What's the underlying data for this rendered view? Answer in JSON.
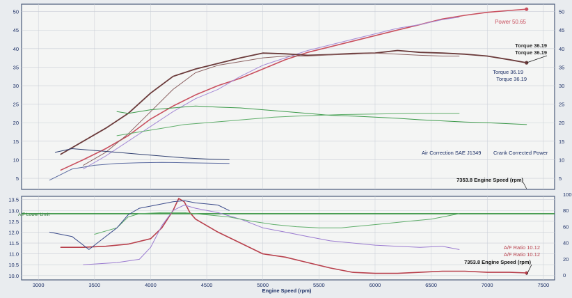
{
  "colors": {
    "background": "#e9ecef",
    "panel": "#f4f5f4",
    "frame": "#4a5a7a",
    "grid": "#c9ced6",
    "tick_text": "#1c2f66",
    "power": "#c9505f",
    "torque": "#6b3b3b",
    "torque_alt": "#8c6fd0",
    "green": "#3c9a4a",
    "blue": "#30406e",
    "af_limit": "#2f8f3a",
    "af_red": "#b8404c",
    "af_purple": "#9a7ad0"
  },
  "chart_data": [
    {
      "type": "line",
      "panel": "top",
      "xlim": [
        2850,
        7600
      ],
      "ylim": [
        2,
        52
      ],
      "yticks_left": [
        5,
        10,
        15,
        20,
        25,
        30,
        35,
        40,
        45,
        50
      ],
      "yticks_right": [
        5,
        10,
        15,
        20,
        25,
        30,
        35,
        40,
        45,
        50
      ],
      "grid": true,
      "series": [
        {
          "key": "power_a",
          "color": "#c9505f",
          "width": 1.6,
          "x": [
            3200,
            3400,
            3600,
            3800,
            4000,
            4200,
            4400,
            4600,
            4800,
            5000,
            5200,
            5400,
            5600,
            5800,
            6000,
            6200,
            6400,
            6600,
            6800,
            7000,
            7200,
            7350
          ],
          "y": [
            7.2,
            10,
            13,
            16.5,
            21,
            24.5,
            27.5,
            30,
            32,
            34.5,
            37,
            39,
            40.5,
            42,
            43.5,
            45,
            46.5,
            48,
            49,
            49.8,
            50.3,
            50.65
          ]
        },
        {
          "key": "power_b",
          "color": "#a58ad6",
          "width": 1.0,
          "x": [
            3400,
            3600,
            3800,
            4000,
            4200,
            4400,
            4600,
            4800,
            5000,
            5200,
            5400,
            5600,
            5800,
            6000,
            6200,
            6400,
            6600,
            6750
          ],
          "y": [
            7.5,
            11,
            15,
            19,
            23,
            26.5,
            29,
            32.5,
            35.5,
            37.5,
            39.5,
            41,
            42.5,
            44,
            45.5,
            46.5,
            47.8,
            48.5
          ]
        },
        {
          "key": "torque_a",
          "color": "#6b3b3b",
          "width": 1.8,
          "x": [
            3200,
            3400,
            3600,
            3800,
            4000,
            4200,
            4400,
            4600,
            4800,
            5000,
            5200,
            5400,
            5600,
            5800,
            6000,
            6200,
            6400,
            6600,
            6800,
            7000,
            7200,
            7350
          ],
          "y": [
            11.5,
            15,
            18.5,
            22.5,
            28,
            32.5,
            34.5,
            36,
            37.5,
            38.8,
            38.6,
            38.2,
            38.4,
            38.7,
            38.8,
            39.5,
            39,
            38.8,
            38.5,
            38,
            37,
            36.19
          ]
        },
        {
          "key": "torque_b",
          "color": "#8a6060",
          "width": 1.0,
          "x": [
            3400,
            3600,
            3800,
            4000,
            4200,
            4400,
            4600,
            4800,
            5000,
            5200,
            5400,
            5600,
            5800,
            6000,
            6200,
            6400,
            6600,
            6750
          ],
          "y": [
            8.5,
            12,
            17,
            23,
            29,
            33.5,
            35.5,
            36.5,
            37.5,
            38,
            38,
            38.3,
            38.5,
            38.8,
            38.5,
            38.2,
            38,
            38
          ]
        },
        {
          "key": "green_a",
          "color": "#3c9a4a",
          "width": 1.0,
          "x": [
            3700,
            3800,
            4000,
            4200,
            4400,
            4600,
            4800,
            5000,
            5200,
            5400,
            5600,
            5800,
            6000,
            6200,
            6400,
            6600,
            6800,
            7000,
            7200,
            7350
          ],
          "y": [
            23,
            22.5,
            23.5,
            24,
            24.5,
            24.2,
            24,
            23.5,
            23,
            22.5,
            22,
            21.8,
            21.5,
            21.2,
            20.8,
            20.5,
            20.2,
            20,
            19.7,
            19.5
          ]
        },
        {
          "key": "green_b",
          "color": "#5fae6a",
          "width": 1.0,
          "x": [
            3700,
            3900,
            4100,
            4300,
            4500,
            4700,
            4900,
            5100,
            5300,
            5500,
            5700,
            5900,
            6100,
            6300,
            6500,
            6750
          ],
          "y": [
            16.5,
            17.5,
            18.5,
            19.5,
            20,
            20.5,
            21,
            21.5,
            21.8,
            22,
            22.2,
            22.3,
            22.4,
            22.5,
            22.5,
            22.5
          ]
        },
        {
          "key": "blue_a",
          "color": "#2f3f70",
          "width": 1.0,
          "x": [
            3150,
            3300,
            3500,
            3700,
            3900,
            4100,
            4300,
            4500,
            4700
          ],
          "y": [
            12,
            13,
            12.5,
            12,
            11.5,
            11,
            10.5,
            10.2,
            10
          ]
        },
        {
          "key": "blue_b",
          "color": "#5a6aa0",
          "width": 1.0,
          "x": [
            3100,
            3300,
            3500,
            3700,
            3900,
            4100,
            4300,
            4500,
            4700
          ],
          "y": [
            4.5,
            7.5,
            8.5,
            9,
            9.2,
            9.3,
            9.2,
            9.1,
            9
          ]
        }
      ],
      "labels": {
        "power": "Power 50.65",
        "torque_top_1": "Torque 36.19",
        "torque_top_2": "Torque 36.19",
        "torque_bot_1": "Torque 36.19",
        "torque_bot_2": "Torque 36.19",
        "air_correction": "Air Correction SAE J1349",
        "crank": "Crank Corrected Power",
        "engine_speed": "7353.8 Engine Speed (rpm)"
      }
    },
    {
      "type": "line",
      "panel": "bottom",
      "xlim": [
        2850,
        7600
      ],
      "ylim": [
        9.8,
        13.65
      ],
      "xlabel": "Engine Speed (rpm)",
      "xticks": [
        3000,
        3500,
        4000,
        4500,
        5000,
        5500,
        6000,
        6500,
        7000,
        7500
      ],
      "yticks_left": [
        10.0,
        10.5,
        11.0,
        11.5,
        12.0,
        12.5,
        13.0,
        13.5
      ],
      "yticks_left_labels": [
        "10.0",
        "10.5",
        "11.0",
        "11.5",
        "12.0",
        "12.5",
        "13.0",
        "13.5"
      ],
      "yticks_right": [
        0,
        20,
        40,
        60,
        80,
        100
      ],
      "grid": true,
      "af_lower_limit": {
        "label": "A/F Lower Limit",
        "value": 12.85
      },
      "series": [
        {
          "key": "af_red",
          "color": "#b8404c",
          "width": 1.6,
          "x": [
            3200,
            3400,
            3600,
            3800,
            4000,
            4100,
            4200,
            4250,
            4300,
            4350,
            4400,
            4600,
            4800,
            5000,
            5200,
            5400,
            5600,
            5800,
            6000,
            6200,
            6400,
            6600,
            6800,
            7000,
            7200,
            7350
          ],
          "y": [
            11.3,
            11.3,
            11.35,
            11.45,
            11.7,
            12.2,
            13.0,
            13.55,
            13.4,
            12.9,
            12.6,
            12.0,
            11.5,
            11.0,
            10.85,
            10.6,
            10.35,
            10.15,
            10.1,
            10.1,
            10.15,
            10.2,
            10.2,
            10.15,
            10.15,
            10.12
          ]
        },
        {
          "key": "af_purple",
          "color": "#9a7ad0",
          "width": 1.0,
          "x": [
            3400,
            3700,
            3900,
            4000,
            4100,
            4200,
            4300,
            4400,
            4600,
            4800,
            5000,
            5200,
            5400,
            5600,
            5800,
            6000,
            6200,
            6400,
            6600,
            6750
          ],
          "y": [
            10.5,
            10.6,
            10.75,
            11.3,
            12.3,
            13.0,
            13.25,
            13.1,
            12.9,
            12.6,
            12.2,
            12.0,
            11.8,
            11.6,
            11.5,
            11.4,
            11.35,
            11.3,
            11.35,
            11.2
          ]
        },
        {
          "key": "af_green",
          "color": "#5fae6a",
          "width": 1.0,
          "x": [
            3500,
            3700,
            3800,
            3900,
            4100,
            4300,
            4500,
            4700,
            4900,
            5100,
            5300,
            5500,
            5700,
            5900,
            6100,
            6300,
            6500,
            6600,
            6750
          ],
          "y": [
            11.9,
            12.2,
            12.7,
            12.85,
            12.9,
            12.9,
            12.8,
            12.7,
            12.5,
            12.35,
            12.25,
            12.2,
            12.2,
            12.3,
            12.4,
            12.5,
            12.6,
            12.7,
            12.85
          ]
        },
        {
          "key": "af_blue",
          "color": "#3a4a8a",
          "width": 1.0,
          "x": [
            3100,
            3300,
            3450,
            3550,
            3700,
            3800,
            3900,
            4000,
            4100,
            4200,
            4300,
            4400,
            4500,
            4600,
            4700
          ],
          "y": [
            12.0,
            11.8,
            11.2,
            11.6,
            12.2,
            12.8,
            13.1,
            13.2,
            13.3,
            13.4,
            13.45,
            13.35,
            13.3,
            13.25,
            13.0
          ]
        }
      ],
      "labels": {
        "af_1": "A/F Ratio 10.12",
        "af_2": "A/F Ratio 10.12",
        "engine_speed": "7353.8 Engine Speed (rpm)"
      }
    }
  ]
}
